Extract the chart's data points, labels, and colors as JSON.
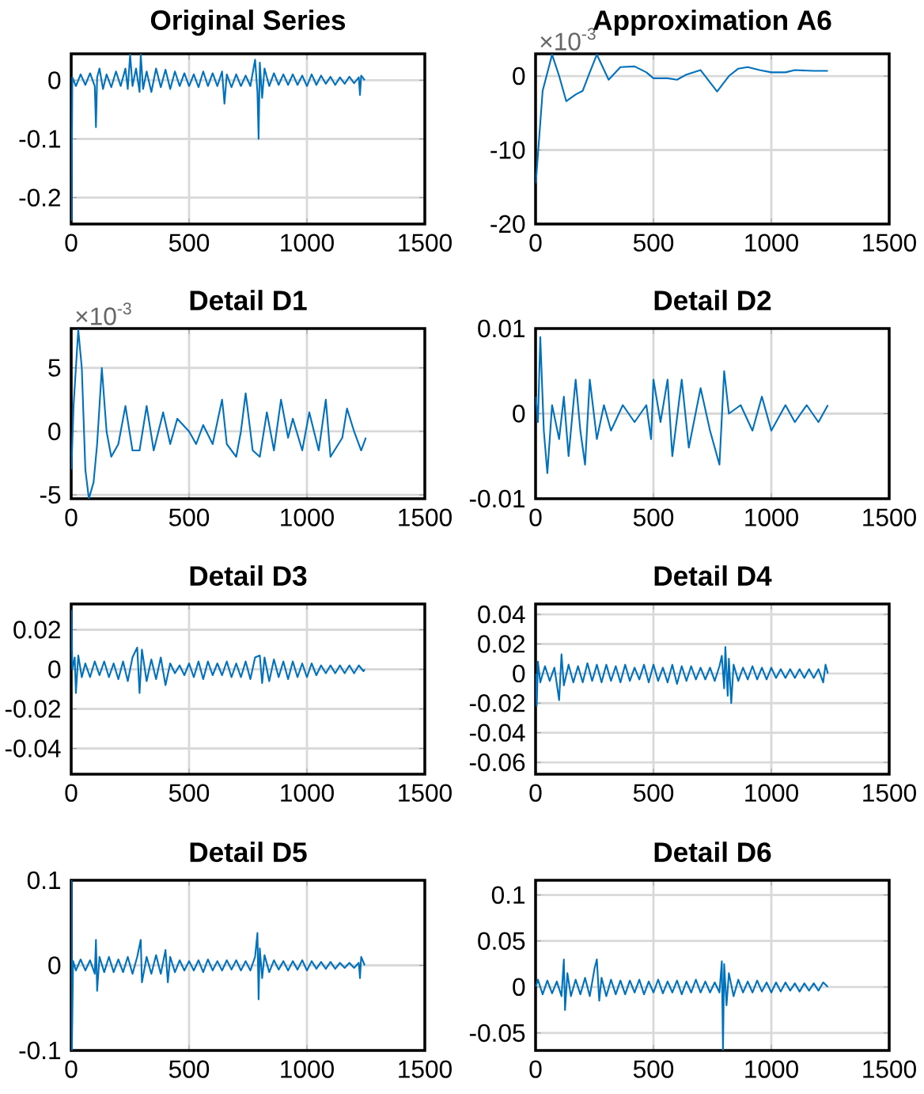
{
  "chart_data": [
    {
      "type": "line",
      "title": "Original Series",
      "color": "#0072bd",
      "grid": true,
      "xlim": [
        0,
        1500
      ],
      "xticks": [
        0,
        500,
        1000,
        1500
      ],
      "ylim": [
        -0.245,
        0.045
      ],
      "yticks": [
        -0.2,
        -0.1,
        0
      ],
      "x": [
        1,
        5,
        20,
        40,
        60,
        80,
        100,
        105,
        110,
        120,
        135,
        150,
        170,
        190,
        210,
        230,
        240,
        250,
        260,
        275,
        290,
        295,
        305,
        320,
        340,
        360,
        380,
        400,
        420,
        440,
        460,
        480,
        500,
        520,
        540,
        560,
        580,
        600,
        620,
        640,
        650,
        660,
        680,
        700,
        720,
        740,
        760,
        780,
        790,
        795,
        800,
        810,
        820,
        840,
        860,
        880,
        900,
        920,
        940,
        960,
        980,
        1000,
        1020,
        1040,
        1060,
        1080,
        1100,
        1120,
        1140,
        1160,
        1180,
        1200,
        1220,
        1225,
        1230,
        1245
      ],
      "values": [
        -0.24,
        0.005,
        -0.01,
        0.01,
        -0.008,
        0.012,
        -0.01,
        -0.08,
        0.005,
        0.02,
        -0.015,
        0.01,
        -0.012,
        0.015,
        -0.01,
        0.02,
        -0.015,
        0.044,
        -0.01,
        0.02,
        -0.02,
        0.044,
        -0.015,
        0.015,
        -0.02,
        0.02,
        -0.012,
        0.018,
        -0.015,
        0.015,
        -0.01,
        0.012,
        -0.01,
        0.01,
        -0.012,
        0.015,
        -0.01,
        0.012,
        -0.01,
        0.015,
        -0.04,
        0.01,
        -0.012,
        0.01,
        -0.01,
        0.008,
        -0.01,
        0.035,
        -0.02,
        -0.1,
        0.03,
        -0.03,
        0.02,
        -0.01,
        0.012,
        -0.008,
        0.01,
        -0.008,
        0.01,
        -0.008,
        0.008,
        -0.01,
        0.01,
        -0.008,
        0.008,
        -0.006,
        0.006,
        -0.008,
        0.005,
        -0.006,
        0.006,
        -0.005,
        0.005,
        -0.025,
        0.008,
        0
      ]
    },
    {
      "type": "line",
      "title": "Approximation A6",
      "annotations": [
        "×10$^{-3}$"
      ],
      "color": "#0072bd",
      "grid": true,
      "xlim": [
        0,
        1500
      ],
      "xticks": [
        0,
        500,
        1000,
        1500
      ],
      "ylim": [
        -20,
        3
      ],
      "yticks": [
        -20,
        -10,
        0
      ],
      "x": [
        1,
        30,
        70,
        100,
        130,
        170,
        200,
        230,
        260,
        310,
        360,
        420,
        470,
        500,
        560,
        600,
        640,
        700,
        770,
        820,
        860,
        900,
        950,
        1000,
        1060,
        1100,
        1180,
        1240
      ],
      "values": [
        -14.5,
        -2,
        2.9,
        0,
        -3.4,
        -2.5,
        -2,
        0.5,
        2.9,
        -0.5,
        1.2,
        1.3,
        0.5,
        -0.3,
        -0.3,
        -0.5,
        0.2,
        0.8,
        -2.1,
        0,
        1,
        1.2,
        0.8,
        0.5,
        0.5,
        0.8,
        0.7,
        0.7
      ]
    },
    {
      "type": "line",
      "title": "Detail D1",
      "annotations": [
        "×10$^{-3}$"
      ],
      "color": "#0072bd",
      "grid": true,
      "xlim": [
        0,
        1500
      ],
      "xticks": [
        0,
        500,
        1000,
        1500
      ],
      "ylim": [
        -5.3,
        8.1
      ],
      "yticks": [
        -5,
        0,
        5
      ],
      "x": [
        1,
        10,
        30,
        45,
        60,
        75,
        95,
        110,
        130,
        150,
        170,
        200,
        230,
        260,
        290,
        320,
        350,
        390,
        420,
        450,
        500,
        530,
        560,
        600,
        640,
        660,
        700,
        720,
        740,
        770,
        800,
        830,
        860,
        890,
        920,
        940,
        980,
        1010,
        1050,
        1080,
        1100,
        1150,
        1170,
        1200,
        1230,
        1250
      ],
      "values": [
        -3,
        2,
        8,
        5,
        -3,
        -5.3,
        -4,
        -1,
        5,
        0,
        -2,
        -1,
        2,
        -1.5,
        -1.5,
        2,
        -1.5,
        1.5,
        -1,
        1,
        0,
        -1,
        0.5,
        -1,
        2.5,
        -1,
        -2,
        0,
        3,
        -1.5,
        -2,
        1.5,
        -1.5,
        2.5,
        -0.5,
        1,
        -1.5,
        1.5,
        -1.5,
        2.5,
        -2,
        -0.5,
        1.8,
        0,
        -1.5,
        -0.5
      ]
    },
    {
      "type": "line",
      "title": "Detail D2",
      "color": "#0072bd",
      "grid": true,
      "xlim": [
        0,
        1500
      ],
      "xticks": [
        0,
        500,
        1000,
        1500
      ],
      "ylim": [
        -0.01,
        0.01
      ],
      "yticks": [
        -0.01,
        0,
        0.01
      ],
      "x": [
        1,
        10,
        20,
        35,
        50,
        70,
        100,
        120,
        140,
        170,
        190,
        210,
        230,
        260,
        290,
        320,
        370,
        420,
        470,
        490,
        500,
        530,
        560,
        580,
        620,
        650,
        700,
        740,
        780,
        800,
        820,
        870,
        920,
        960,
        1000,
        1060,
        1100,
        1150,
        1200,
        1240
      ],
      "values": [
        0.002,
        -0.001,
        0.009,
        -0.002,
        -0.007,
        0.001,
        -0.003,
        0.002,
        -0.005,
        0.004,
        -0.002,
        -0.006,
        0.004,
        -0.003,
        0.001,
        -0.002,
        0.001,
        -0.001,
        0.001,
        -0.003,
        0.004,
        -0.001,
        0.004,
        -0.005,
        0.004,
        -0.004,
        0.003,
        -0.002,
        -0.006,
        0.005,
        0.0,
        0.001,
        -0.002,
        0.002,
        -0.002,
        0.001,
        -0.001,
        0.001,
        -0.001,
        0.001
      ]
    },
    {
      "type": "line",
      "title": "Detail D3",
      "color": "#0072bd",
      "grid": true,
      "xlim": [
        0,
        1500
      ],
      "xticks": [
        0,
        500,
        1000,
        1500
      ],
      "ylim": [
        -0.053,
        0.033
      ],
      "yticks": [
        -0.04,
        -0.02,
        0,
        0.02
      ],
      "x": [
        1,
        5,
        15,
        20,
        30,
        45,
        60,
        80,
        100,
        120,
        140,
        160,
        180,
        200,
        220,
        240,
        260,
        280,
        290,
        300,
        320,
        340,
        360,
        380,
        400,
        420,
        440,
        460,
        480,
        500,
        520,
        540,
        560,
        580,
        600,
        620,
        640,
        660,
        680,
        700,
        720,
        740,
        760,
        780,
        800,
        810,
        820,
        840,
        860,
        880,
        900,
        920,
        940,
        960,
        980,
        1000,
        1020,
        1040,
        1060,
        1080,
        1100,
        1120,
        1140,
        1160,
        1180,
        1200,
        1220,
        1240,
        1245
      ],
      "values": [
        0.03,
        0.0,
        0.006,
        -0.012,
        0.007,
        -0.004,
        0.003,
        -0.004,
        0.004,
        -0.003,
        0.004,
        -0.004,
        0.003,
        -0.005,
        0.004,
        -0.006,
        0.006,
        0.011,
        -0.012,
        0.01,
        -0.006,
        0.005,
        -0.005,
        0.006,
        -0.008,
        0.003,
        -0.002,
        0.002,
        -0.003,
        0.003,
        -0.004,
        0.004,
        -0.005,
        0.004,
        -0.003,
        0.003,
        -0.003,
        0.004,
        -0.004,
        0.003,
        -0.004,
        0.004,
        -0.005,
        0.006,
        0.007,
        -0.007,
        0.006,
        -0.006,
        0.005,
        -0.004,
        0.004,
        -0.005,
        0.004,
        -0.004,
        0.003,
        -0.004,
        0.003,
        -0.003,
        0.002,
        -0.002,
        0.002,
        -0.002,
        0.002,
        -0.002,
        0.002,
        -0.002,
        0.002,
        -0.001,
        0.0
      ]
    },
    {
      "type": "line",
      "title": "Detail D4",
      "color": "#0072bd",
      "grid": true,
      "xlim": [
        0,
        1500
      ],
      "xticks": [
        0,
        500,
        1000,
        1500
      ],
      "ylim": [
        -0.068,
        0.047
      ],
      "yticks": [
        -0.06,
        -0.04,
        -0.02,
        0,
        0.02,
        0.04
      ],
      "x": [
        1,
        5,
        10,
        20,
        40,
        60,
        80,
        100,
        110,
        120,
        140,
        160,
        180,
        200,
        220,
        240,
        260,
        280,
        300,
        320,
        340,
        360,
        380,
        400,
        420,
        440,
        460,
        480,
        500,
        520,
        540,
        560,
        580,
        600,
        620,
        640,
        660,
        680,
        700,
        720,
        740,
        760,
        780,
        790,
        800,
        805,
        815,
        820,
        830,
        840,
        860,
        880,
        900,
        920,
        940,
        960,
        980,
        1000,
        1020,
        1040,
        1060,
        1080,
        1100,
        1120,
        1140,
        1160,
        1180,
        1200,
        1220,
        1230,
        1240
      ],
      "values": [
        0.0,
        -0.022,
        0.008,
        -0.006,
        0.005,
        -0.005,
        0.004,
        -0.018,
        0.013,
        -0.008,
        0.006,
        -0.006,
        0.005,
        -0.006,
        0.007,
        -0.005,
        0.006,
        -0.006,
        0.006,
        -0.005,
        0.005,
        -0.006,
        0.006,
        -0.005,
        0.004,
        -0.004,
        0.006,
        -0.006,
        0.006,
        -0.005,
        0.004,
        -0.006,
        0.006,
        -0.007,
        0.005,
        -0.005,
        0.005,
        -0.004,
        0.004,
        -0.004,
        0.004,
        -0.005,
        0.005,
        0.012,
        -0.01,
        0.018,
        -0.015,
        0.01,
        -0.02,
        0.006,
        -0.005,
        0.004,
        -0.004,
        0.005,
        -0.004,
        0.004,
        -0.004,
        0.004,
        -0.003,
        0.003,
        -0.003,
        0.003,
        -0.003,
        0.003,
        -0.003,
        0.003,
        -0.003,
        0.003,
        -0.006,
        0.006,
        0.0
      ]
    },
    {
      "type": "line",
      "title": "Detail D5",
      "color": "#0072bd",
      "grid": true,
      "xlim": [
        0,
        1500
      ],
      "xticks": [
        0,
        500,
        1000,
        1500
      ],
      "ylim": [
        -0.1,
        0.1
      ],
      "yticks": [
        -0.1,
        0,
        0.1
      ],
      "x": [
        1,
        3,
        8,
        20,
        40,
        60,
        80,
        100,
        105,
        110,
        120,
        140,
        160,
        180,
        200,
        220,
        240,
        260,
        280,
        295,
        300,
        320,
        340,
        360,
        380,
        400,
        410,
        420,
        440,
        460,
        480,
        500,
        520,
        540,
        560,
        580,
        600,
        620,
        640,
        660,
        680,
        700,
        720,
        740,
        760,
        780,
        790,
        795,
        800,
        810,
        820,
        840,
        860,
        880,
        900,
        920,
        940,
        960,
        980,
        1000,
        1020,
        1040,
        1060,
        1080,
        1100,
        1120,
        1140,
        1160,
        1180,
        1200,
        1220,
        1225,
        1230,
        1245
      ],
      "values": [
        0.1,
        -0.1,
        0.005,
        -0.006,
        0.007,
        -0.006,
        0.006,
        -0.01,
        0.03,
        -0.03,
        0.01,
        -0.008,
        0.01,
        -0.008,
        0.007,
        -0.008,
        0.01,
        -0.01,
        0.01,
        0.03,
        -0.02,
        0.01,
        -0.01,
        0.012,
        -0.01,
        0.018,
        -0.02,
        0.01,
        -0.008,
        0.006,
        -0.006,
        0.005,
        -0.006,
        0.006,
        -0.008,
        0.007,
        -0.006,
        0.005,
        -0.006,
        0.006,
        -0.005,
        0.006,
        -0.006,
        0.005,
        -0.006,
        0.01,
        0.038,
        -0.04,
        0.02,
        -0.015,
        0.012,
        -0.008,
        0.006,
        -0.005,
        0.005,
        -0.006,
        0.005,
        -0.005,
        0.006,
        -0.006,
        0.005,
        -0.004,
        0.004,
        -0.004,
        0.004,
        -0.004,
        0.003,
        -0.003,
        0.003,
        -0.003,
        0.003,
        -0.015,
        0.01,
        0.0
      ]
    },
    {
      "type": "line",
      "title": "Detail D6",
      "color": "#0072bd",
      "grid": true,
      "xlim": [
        0,
        1500
      ],
      "xticks": [
        0,
        500,
        1000,
        1500
      ],
      "ylim": [
        -0.069,
        0.116
      ],
      "yticks": [
        -0.05,
        0,
        0.05,
        0.1
      ],
      "x": [
        1,
        10,
        30,
        50,
        70,
        90,
        110,
        120,
        125,
        135,
        150,
        170,
        190,
        210,
        230,
        250,
        260,
        270,
        280,
        300,
        320,
        340,
        360,
        380,
        400,
        420,
        440,
        460,
        480,
        500,
        520,
        540,
        560,
        580,
        600,
        620,
        640,
        660,
        680,
        700,
        720,
        740,
        760,
        780,
        790,
        795,
        800,
        810,
        820,
        840,
        860,
        880,
        900,
        920,
        940,
        960,
        980,
        1000,
        1020,
        1040,
        1060,
        1080,
        1100,
        1120,
        1140,
        1160,
        1180,
        1200,
        1220,
        1240
      ],
      "values": [
        0.0,
        0.008,
        -0.008,
        0.007,
        -0.007,
        0.006,
        -0.01,
        0.03,
        -0.025,
        0.015,
        -0.01,
        0.008,
        -0.008,
        0.01,
        -0.01,
        0.02,
        0.03,
        -0.015,
        0.01,
        -0.01,
        0.008,
        -0.008,
        0.007,
        -0.008,
        0.007,
        -0.006,
        0.008,
        -0.008,
        0.006,
        -0.006,
        0.008,
        -0.007,
        0.006,
        -0.006,
        0.007,
        -0.008,
        0.006,
        -0.006,
        0.008,
        -0.006,
        0.006,
        -0.006,
        0.005,
        -0.006,
        0.028,
        -0.069,
        0.025,
        -0.02,
        0.015,
        -0.01,
        0.008,
        -0.006,
        0.006,
        -0.006,
        0.007,
        -0.005,
        0.005,
        -0.006,
        0.005,
        -0.005,
        0.005,
        -0.004,
        0.004,
        -0.005,
        0.004,
        -0.004,
        0.004,
        -0.004,
        0.005,
        0.0
      ]
    }
  ]
}
